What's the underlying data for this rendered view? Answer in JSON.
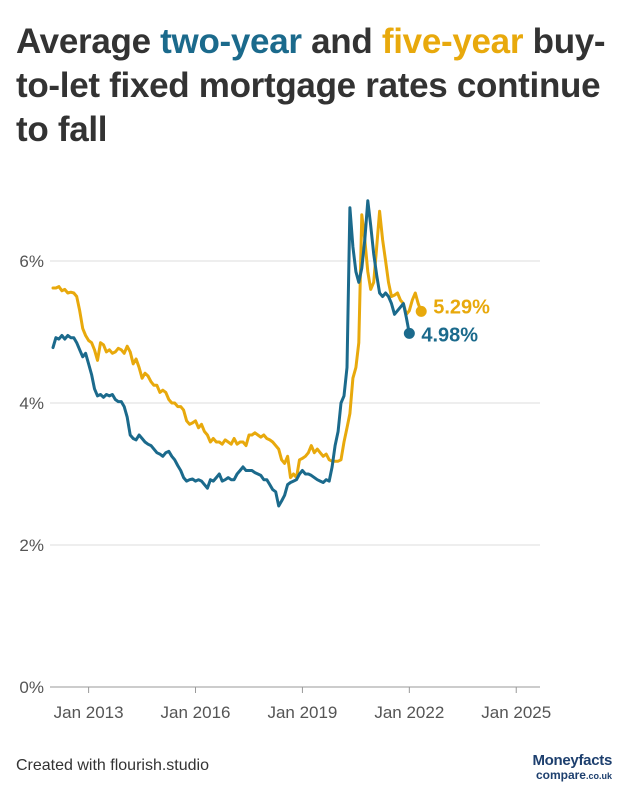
{
  "title": {
    "part1": "Average ",
    "two_year": "two-year",
    "part2": " and ",
    "five_year": "five-year",
    "part3": " buy-to-let fixed mortgage rates continue to fall"
  },
  "footer": {
    "credit": "Created with flourish.studio"
  },
  "logo": {
    "line1": "Moneyfacts",
    "line2": "compare",
    "line2_suffix": ".co.uk"
  },
  "colors": {
    "two_year": "#1b6a8c",
    "five_year": "#e8a90c",
    "grid": "#dddddd",
    "text": "#333333"
  },
  "chart_data": {
    "type": "line",
    "x_start": "2012-01",
    "x_frequency": "monthly",
    "xlim": [
      "2011-12",
      "2025-09"
    ],
    "ylim": [
      0,
      7
    ],
    "y_ticks": [
      0,
      2,
      4,
      6
    ],
    "y_tick_labels": [
      "0%",
      "2%",
      "4%",
      "6%"
    ],
    "x_ticks": [
      "2013-01",
      "2016-01",
      "2019-01",
      "2022-01",
      "2025-01"
    ],
    "x_tick_labels": [
      "Jan 2013",
      "Jan 2016",
      "Jan 2019",
      "Jan 2022",
      "Jan 2025"
    ],
    "grid": "horizontal",
    "legend": "none",
    "series": [
      {
        "key": "five_year",
        "end_label": "5.29%",
        "values": [
          5.62,
          5.62,
          5.64,
          5.58,
          5.6,
          5.55,
          5.56,
          5.55,
          5.5,
          5.3,
          5.05,
          4.95,
          4.88,
          4.85,
          4.75,
          4.6,
          4.85,
          4.82,
          4.72,
          4.75,
          4.7,
          4.72,
          4.77,
          4.75,
          4.7,
          4.8,
          4.72,
          4.55,
          4.62,
          4.5,
          4.35,
          4.42,
          4.38,
          4.3,
          4.25,
          4.25,
          4.15,
          4.18,
          4.15,
          4.05,
          4.0,
          4.0,
          3.95,
          3.95,
          3.9,
          3.75,
          3.7,
          3.72,
          3.75,
          3.65,
          3.7,
          3.6,
          3.55,
          3.45,
          3.5,
          3.45,
          3.45,
          3.42,
          3.48,
          3.45,
          3.42,
          3.5,
          3.42,
          3.45,
          3.45,
          3.4,
          3.55,
          3.55,
          3.58,
          3.55,
          3.52,
          3.55,
          3.5,
          3.48,
          3.45,
          3.4,
          3.35,
          3.2,
          3.15,
          3.25,
          2.95,
          3.0,
          2.95,
          3.2,
          3.22,
          3.25,
          3.3,
          3.4,
          3.3,
          3.35,
          3.3,
          3.25,
          3.28,
          3.2,
          3.18,
          3.18,
          3.18,
          3.2,
          3.45,
          3.65,
          3.85,
          4.35,
          4.5,
          4.85,
          6.65,
          6.3,
          5.85,
          5.6,
          5.7,
          6.2,
          6.7,
          6.3,
          6.0,
          5.7,
          5.5,
          5.52,
          5.55,
          5.45,
          5.4,
          5.25,
          5.3,
          5.45,
          5.55,
          5.4,
          5.29
        ]
      },
      {
        "key": "two_year",
        "end_label": "4.98%",
        "values": [
          4.78,
          4.92,
          4.9,
          4.95,
          4.9,
          4.95,
          4.92,
          4.92,
          4.85,
          4.75,
          4.65,
          4.7,
          4.55,
          4.4,
          4.2,
          4.1,
          4.12,
          4.08,
          4.12,
          4.1,
          4.12,
          4.05,
          4.02,
          4.02,
          3.95,
          3.8,
          3.55,
          3.5,
          3.48,
          3.55,
          3.5,
          3.45,
          3.42,
          3.4,
          3.35,
          3.3,
          3.28,
          3.25,
          3.3,
          3.32,
          3.25,
          3.2,
          3.12,
          3.05,
          2.95,
          2.9,
          2.92,
          2.93,
          2.9,
          2.92,
          2.9,
          2.85,
          2.8,
          2.92,
          2.9,
          2.95,
          3.0,
          2.9,
          2.92,
          2.95,
          2.92,
          2.92,
          3.0,
          3.05,
          3.1,
          3.05,
          3.05,
          3.05,
          3.02,
          3.0,
          2.98,
          2.92,
          2.92,
          2.85,
          2.78,
          2.75,
          2.55,
          2.62,
          2.7,
          2.85,
          2.88,
          2.9,
          2.92,
          3.0,
          3.05,
          3.0,
          3.0,
          2.98,
          2.95,
          2.92,
          2.9,
          2.88,
          2.92,
          2.9,
          3.1,
          3.4,
          3.6,
          4.0,
          4.1,
          4.5,
          6.75,
          6.2,
          5.85,
          5.7,
          5.9,
          6.3,
          6.85,
          6.5,
          6.1,
          5.8,
          5.55,
          5.5,
          5.55,
          5.5,
          5.4,
          5.25,
          5.3,
          5.35,
          5.4,
          5.2,
          4.98
        ]
      }
    ]
  }
}
